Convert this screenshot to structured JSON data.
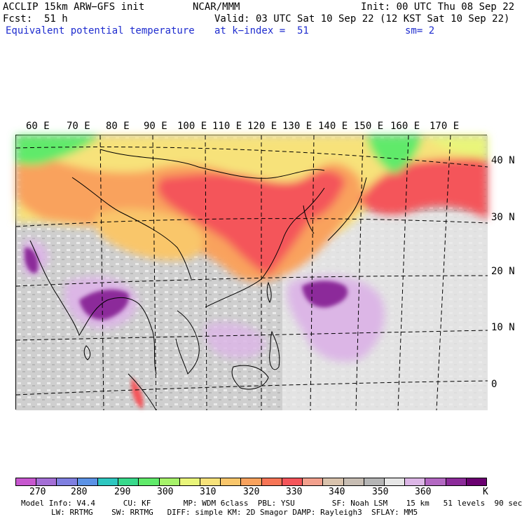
{
  "header": {
    "model": "ACCLIP 15km ARW−GFS init",
    "center": "NCAR/MMM",
    "init": "Init: 00 UTC Thu 08 Sep 22",
    "fcst_label": "Fcst:",
    "fcst_value": "51 h",
    "valid": "Valid: 03 UTC Sat 10 Sep 22 (12 KST Sat 10 Sep 22)",
    "field": "Equivalent potential temperature",
    "level": "at k−index =  51",
    "smoothing": "sm= 2"
  },
  "map": {
    "lon_labels": [
      "60 E",
      "70 E",
      "80 E",
      "90 E",
      "100 E",
      "110 E",
      "120 E",
      "130 E",
      "140 E",
      "150 E",
      "160 E",
      "170 E"
    ],
    "lat_labels": [
      "40 N",
      "30 N",
      "20 N",
      "10 N",
      "0"
    ]
  },
  "colorbar": {
    "colors": [
      "#c757cf",
      "#a46fd6",
      "#7f7fe0",
      "#5b92e6",
      "#2ec7c0",
      "#38d98b",
      "#60ea6a",
      "#a6f26a",
      "#e9f57a",
      "#f7e27a",
      "#f9c66b",
      "#f9a25d",
      "#f77556",
      "#f4555a",
      "#f2a08d",
      "#d9c3ad",
      "#c7bdb3",
      "#b5b5b5",
      "#e6e6e6",
      "#dcb6e6",
      "#b368c2",
      "#8c2b9a",
      "#6a0070"
    ],
    "ticks": [
      "270",
      "280",
      "290",
      "300",
      "310",
      "320",
      "330",
      "340",
      "350",
      "360"
    ],
    "unit": "K"
  },
  "model_info": {
    "line1": "Model Info: V4.4      CU: KF       MP: WDM 6class  PBL: YSU        SF: Noah LSM    15 km   51 levels  90 sec",
    "line2": "LW: RRTMG    SW: RRTMG   DIFF: simple KM: 2D Smagor DAMP: Rayleigh3  SFLAY: MM5"
  }
}
